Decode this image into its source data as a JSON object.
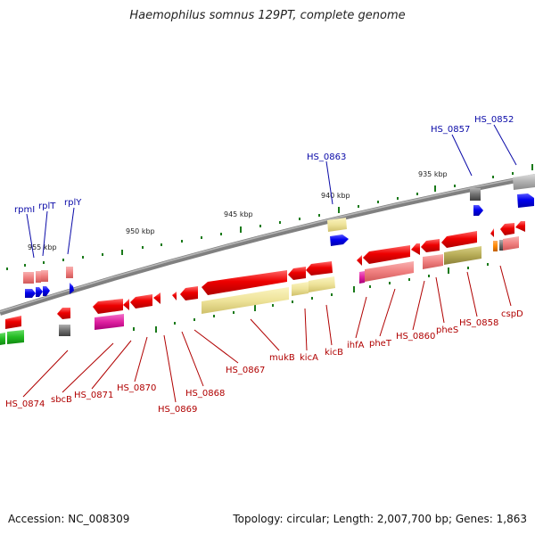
{
  "title": "Haemophilus somnus 129PT, complete genome",
  "footer": {
    "accession": "Accession: NC_008309",
    "stats": "Topology: circular; Length: 2,007,700 bp; Genes: 1,863"
  },
  "scale_labels": [
    "955 kbp",
    "950 kbp",
    "945 kbp",
    "940 kbp",
    "935 kbp"
  ],
  "top_genes": [
    "rpmI",
    "rplT",
    "rplY",
    "HS_0863",
    "HS_0857",
    "HS_0852"
  ],
  "bottom_genes": [
    "HS_0874",
    "sbcB",
    "HS_0871",
    "HS_0870",
    "HS_0869",
    "HS_0868",
    "HS_0867",
    "mukB",
    "kicA",
    "kicB",
    "ihfA",
    "pheT",
    "HS_0860",
    "pheS",
    "HS_0858",
    "cspD"
  ],
  "colors": {
    "plus_strand_cds": "#0000ee",
    "minus_strand_cds": "#ee0000",
    "label_top": "#0a0aa8",
    "label_bottom": "#b00000",
    "backbone": "#808080",
    "ticks": "#1a7a1a",
    "cog_yellow": "#eee39a",
    "cog_pink": "#f08080",
    "cog_magenta": "#e020a0",
    "cog_green": "#22bb22",
    "cog_grey": "#909090",
    "cog_olive": "#b5aa55",
    "cog_orange": "#ff8800"
  }
}
